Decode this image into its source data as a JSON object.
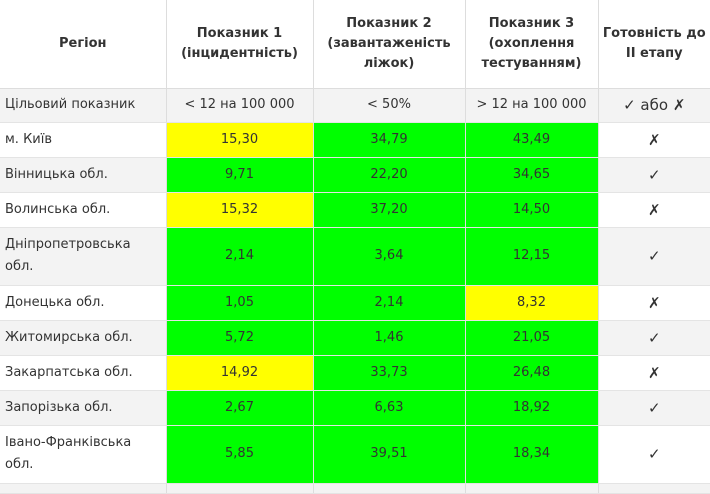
{
  "colors": {
    "green": "#00ff00",
    "yellow": "#ffff00"
  },
  "header": {
    "region": "Регіон",
    "ind1": "Показник 1 (інцидентність)",
    "ind2": "Показник 2 (завантаженість ліжок)",
    "ind3": "Показник 3 (охоплення тестуванням)",
    "ready": "Готовність до II етапу"
  },
  "target": {
    "label": "Цільовий показник",
    "ind1": "< 12 на 100 000",
    "ind2": "< 50%",
    "ind3": "> 12 на 100 000",
    "ready": "✓ або ✗"
  },
  "rows": [
    {
      "region": "м. Київ",
      "ind1": "15,30",
      "ind2": "34,79",
      "ind3": "43,49",
      "ready": "✗",
      "c1": "yellow",
      "c2": "green",
      "c3": "green"
    },
    {
      "region": "Вінницька обл.",
      "ind1": "9,71",
      "ind2": "22,20",
      "ind3": "34,65",
      "ready": "✓",
      "c1": "green",
      "c2": "green",
      "c3": "green"
    },
    {
      "region": "Волинська обл.",
      "ind1": "15,32",
      "ind2": "37,20",
      "ind3": "14,50",
      "ready": "✗",
      "c1": "yellow",
      "c2": "green",
      "c3": "green"
    },
    {
      "region": "Дніпропетровська обл.",
      "ind1": "2,14",
      "ind2": "3,64",
      "ind3": "12,15",
      "ready": "✓",
      "c1": "green",
      "c2": "green",
      "c3": "green"
    },
    {
      "region": "Донецька обл.",
      "ind1": "1,05",
      "ind2": "2,14",
      "ind3": "8,32",
      "ready": "✗",
      "c1": "green",
      "c2": "green",
      "c3": "yellow"
    },
    {
      "region": "Житомирська обл.",
      "ind1": "5,72",
      "ind2": "1,46",
      "ind3": "21,05",
      "ready": "✓",
      "c1": "green",
      "c2": "green",
      "c3": "green"
    },
    {
      "region": "Закарпатська обл.",
      "ind1": "14,92",
      "ind2": "33,73",
      "ind3": "26,48",
      "ready": "✗",
      "c1": "yellow",
      "c2": "green",
      "c3": "green"
    },
    {
      "region": "Запорізька обл.",
      "ind1": "2,67",
      "ind2": "6,63",
      "ind3": "18,92",
      "ready": "✓",
      "c1": "green",
      "c2": "green",
      "c3": "green"
    },
    {
      "region": "Івано-Франківська обл.",
      "ind1": "5,85",
      "ind2": "39,51",
      "ind3": "18,34",
      "ready": "✓",
      "c1": "green",
      "c2": "green",
      "c3": "green"
    }
  ]
}
